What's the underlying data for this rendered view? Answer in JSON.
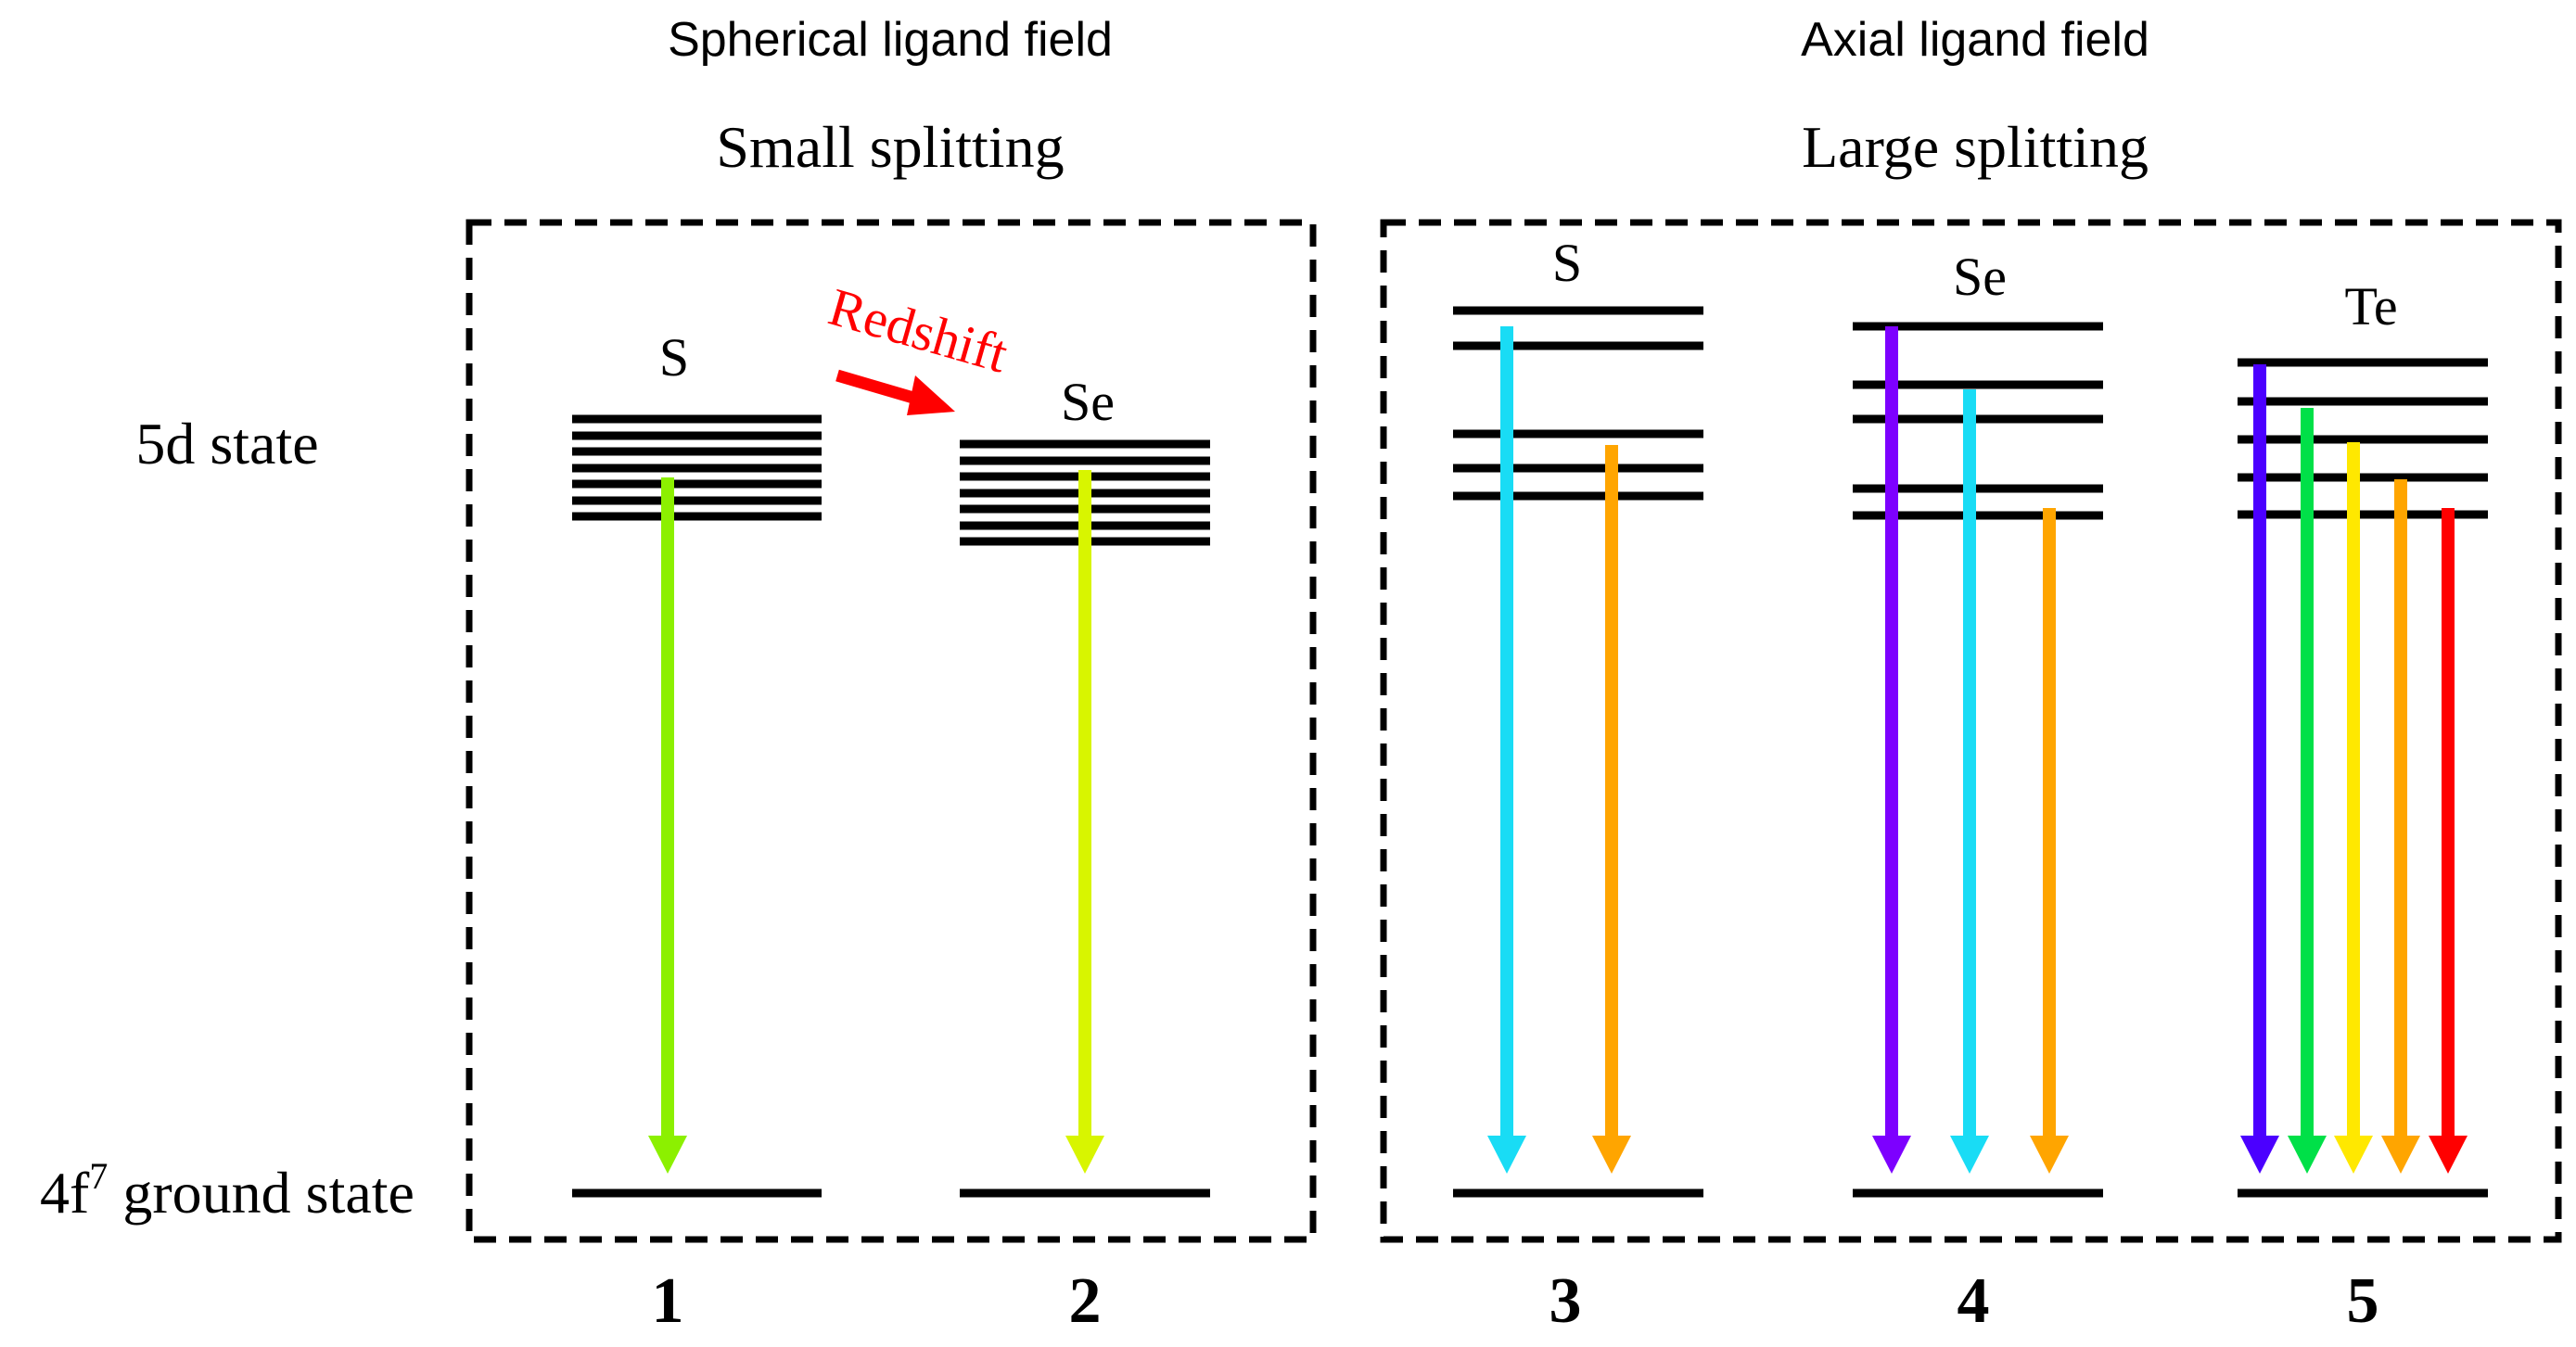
{
  "header": {
    "left_title": "Spherical ligand field",
    "right_title": "Axial ligand field",
    "left_subtitle": "Small splitting",
    "right_subtitle": "Large splitting"
  },
  "axis_labels": {
    "excited": "5d state",
    "ground_prefix": "4f",
    "ground_superscript": "7",
    "ground_suffix": " ground state"
  },
  "redshift_label": "Redshift",
  "colors": {
    "level": "#000000",
    "box": "#000000",
    "redshift": "#ff0000",
    "green": "#8cf000",
    "yellow_green": "#d8f500",
    "cyan": "#19dcf5",
    "orange": "#ffa500",
    "violet": "#7d00ff",
    "blue": "#4b00ff",
    "bright_green": "#00e048",
    "yellow": "#ffe800",
    "red": "#ff0000"
  },
  "columns": [
    {
      "number": "1",
      "label": "S",
      "arrows": [
        "green"
      ]
    },
    {
      "number": "2",
      "label": "Se",
      "arrows": [
        "yellow_green"
      ]
    },
    {
      "number": "3",
      "label": "S",
      "arrows": [
        "cyan",
        "orange"
      ]
    },
    {
      "number": "4",
      "label": "Se",
      "arrows": [
        "violet",
        "cyan",
        "orange"
      ]
    },
    {
      "number": "5",
      "label": "Te",
      "arrows": [
        "blue",
        "bright_green",
        "yellow",
        "orange",
        "red"
      ]
    }
  ]
}
